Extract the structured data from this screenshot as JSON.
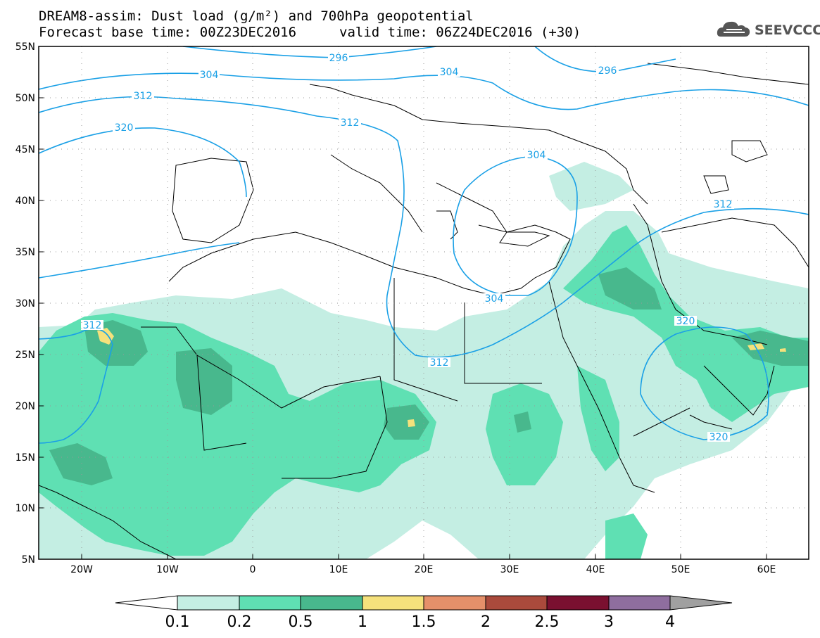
{
  "title": {
    "line1": "DREAM8-assim: Dust load (g/m²) and 700hPa geopotential",
    "line2a": "Forecast base time: 00Z23DEC2016",
    "line2b": "valid time: 06Z24DEC2016 (+30)"
  },
  "logo": {
    "text": "SEEVCCC",
    "icon": "cloud-icon"
  },
  "map": {
    "lat_labels": [
      "55N",
      "50N",
      "45N",
      "40N",
      "35N",
      "30N",
      "25N",
      "20N",
      "15N",
      "10N",
      "5N"
    ],
    "lon_labels": [
      "20W",
      "10W",
      "0",
      "10E",
      "20E",
      "30E",
      "40E",
      "50E",
      "60E"
    ],
    "lat_range": [
      5,
      55
    ],
    "lon_range": [
      -25,
      65
    ],
    "contour_labels": [
      "296",
      "296",
      "304",
      "304",
      "304",
      "304",
      "312",
      "312",
      "312",
      "312",
      "312",
      "320",
      "320",
      "320"
    ]
  },
  "colorbar": {
    "labels": [
      "0.1",
      "0.2",
      "0.5",
      "1",
      "1.5",
      "2",
      "2.5",
      "3",
      "4"
    ],
    "colors": [
      "#ffffff",
      "#c4eee3",
      "#5fe0b3",
      "#48b88d",
      "#f5e17c",
      "#e5906a",
      "#aa4a3c",
      "#7a1030",
      "#8f6e9f",
      "#a0a0a0"
    ]
  },
  "colors": {
    "dust_low": "#c4eee3",
    "dust_mid": "#5fe0b3",
    "dust_high": "#48b88d",
    "dust_peak": "#f5e17c",
    "contour": "#1aa0e6",
    "border": "#000000"
  }
}
